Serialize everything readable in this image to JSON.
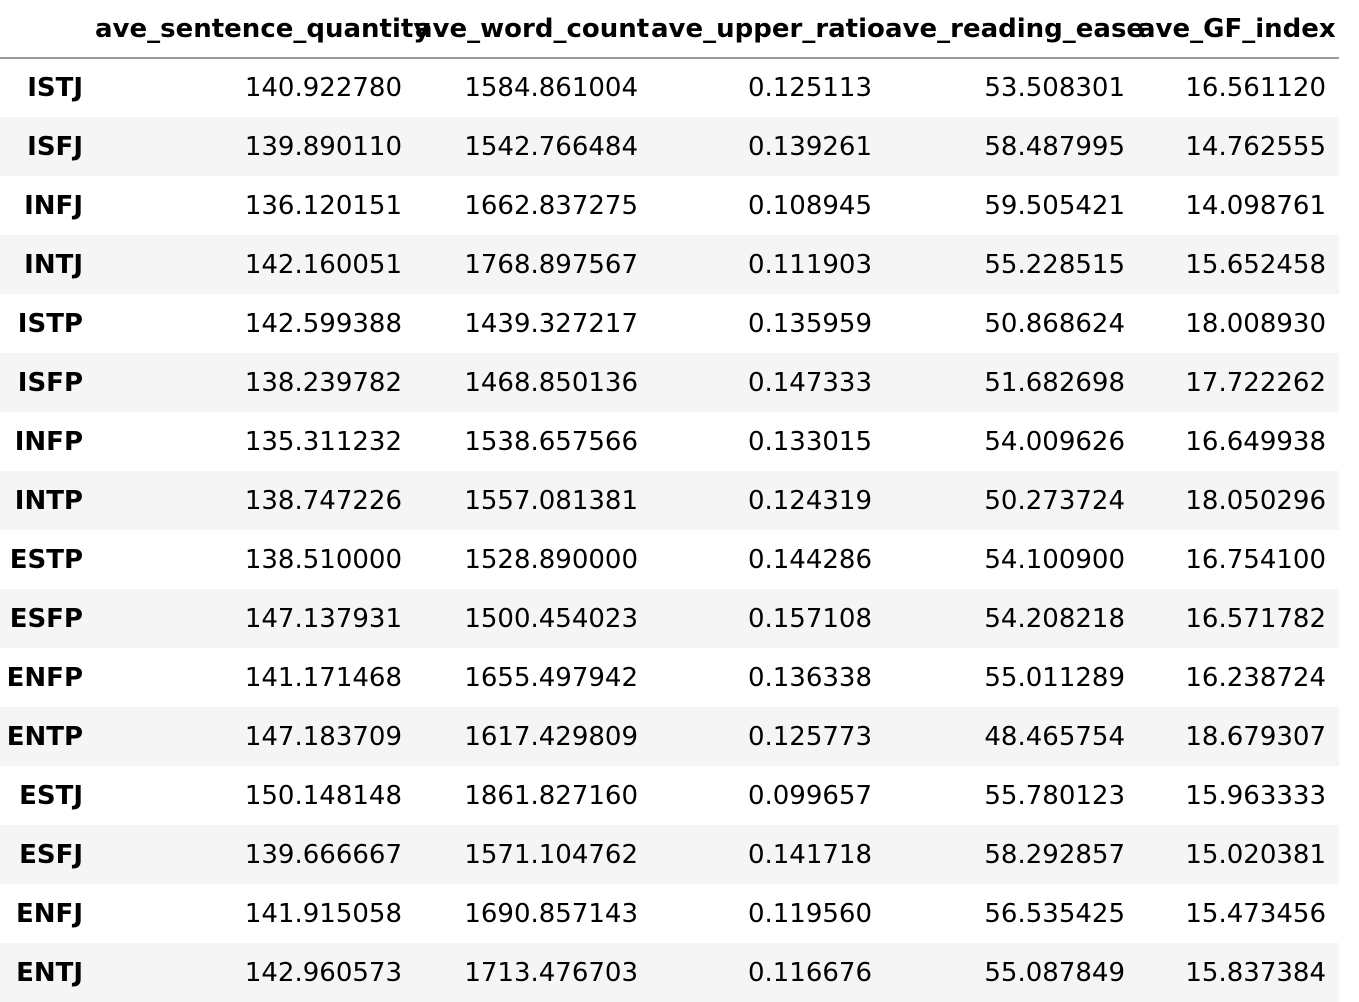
{
  "table": {
    "index_header": "",
    "columns": [
      "ave_sentence_quantity",
      "ave_word_count",
      "ave_upper_ratio",
      "ave_reading_ease",
      "ave_GF_index"
    ],
    "rows": [
      {
        "label": "ISTJ",
        "values": [
          "140.922780",
          "1584.861004",
          "0.125113",
          "53.508301",
          "16.561120"
        ]
      },
      {
        "label": "ISFJ",
        "values": [
          "139.890110",
          "1542.766484",
          "0.139261",
          "58.487995",
          "14.762555"
        ]
      },
      {
        "label": "INFJ",
        "values": [
          "136.120151",
          "1662.837275",
          "0.108945",
          "59.505421",
          "14.098761"
        ]
      },
      {
        "label": "INTJ",
        "values": [
          "142.160051",
          "1768.897567",
          "0.111903",
          "55.228515",
          "15.652458"
        ]
      },
      {
        "label": "ISTP",
        "values": [
          "142.599388",
          "1439.327217",
          "0.135959",
          "50.868624",
          "18.008930"
        ]
      },
      {
        "label": "ISFP",
        "values": [
          "138.239782",
          "1468.850136",
          "0.147333",
          "51.682698",
          "17.722262"
        ]
      },
      {
        "label": "INFP",
        "values": [
          "135.311232",
          "1538.657566",
          "0.133015",
          "54.009626",
          "16.649938"
        ]
      },
      {
        "label": "INTP",
        "values": [
          "138.747226",
          "1557.081381",
          "0.124319",
          "50.273724",
          "18.050296"
        ]
      },
      {
        "label": "ESTP",
        "values": [
          "138.510000",
          "1528.890000",
          "0.144286",
          "54.100900",
          "16.754100"
        ]
      },
      {
        "label": "ESFP",
        "values": [
          "147.137931",
          "1500.454023",
          "0.157108",
          "54.208218",
          "16.571782"
        ]
      },
      {
        "label": "ENFP",
        "values": [
          "141.171468",
          "1655.497942",
          "0.136338",
          "55.011289",
          "16.238724"
        ]
      },
      {
        "label": "ENTP",
        "values": [
          "147.183709",
          "1617.429809",
          "0.125773",
          "48.465754",
          "18.679307"
        ]
      },
      {
        "label": "ESTJ",
        "values": [
          "150.148148",
          "1861.827160",
          "0.099657",
          "55.780123",
          "15.963333"
        ]
      },
      {
        "label": "ESFJ",
        "values": [
          "139.666667",
          "1571.104762",
          "0.141718",
          "58.292857",
          "15.020381"
        ]
      },
      {
        "label": "ENFJ",
        "values": [
          "141.915058",
          "1690.857143",
          "0.119560",
          "56.535425",
          "15.473456"
        ]
      },
      {
        "label": "ENTJ",
        "values": [
          "142.960573",
          "1713.476703",
          "0.116676",
          "55.087849",
          "15.837384"
        ]
      }
    ]
  }
}
